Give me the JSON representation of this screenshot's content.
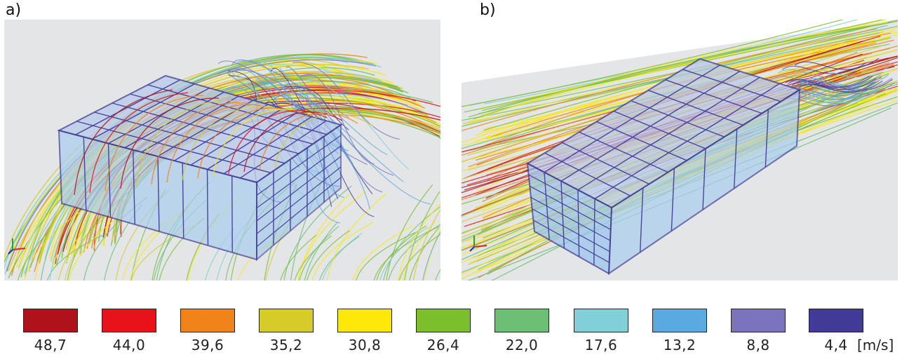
{
  "panels": [
    {
      "label": "a)"
    },
    {
      "label": "b)"
    }
  ],
  "legend": {
    "unit": "[m/s]",
    "items": [
      {
        "value": "48,7",
        "color": "#b0121b"
      },
      {
        "value": "44,0",
        "color": "#e8121b"
      },
      {
        "value": "39,6",
        "color": "#f08319"
      },
      {
        "value": "35,2",
        "color": "#d7cb2a"
      },
      {
        "value": "30,8",
        "color": "#fde80a"
      },
      {
        "value": "26,4",
        "color": "#7bbf2c"
      },
      {
        "value": "22,0",
        "color": "#6cbf74"
      },
      {
        "value": "17,6",
        "color": "#80cfd9"
      },
      {
        "value": "13,2",
        "color": "#5aa9e0"
      },
      {
        "value": "8,8",
        "color": "#7c73bf"
      },
      {
        "value": "4,4",
        "color": "#413a97"
      }
    ]
  }
}
